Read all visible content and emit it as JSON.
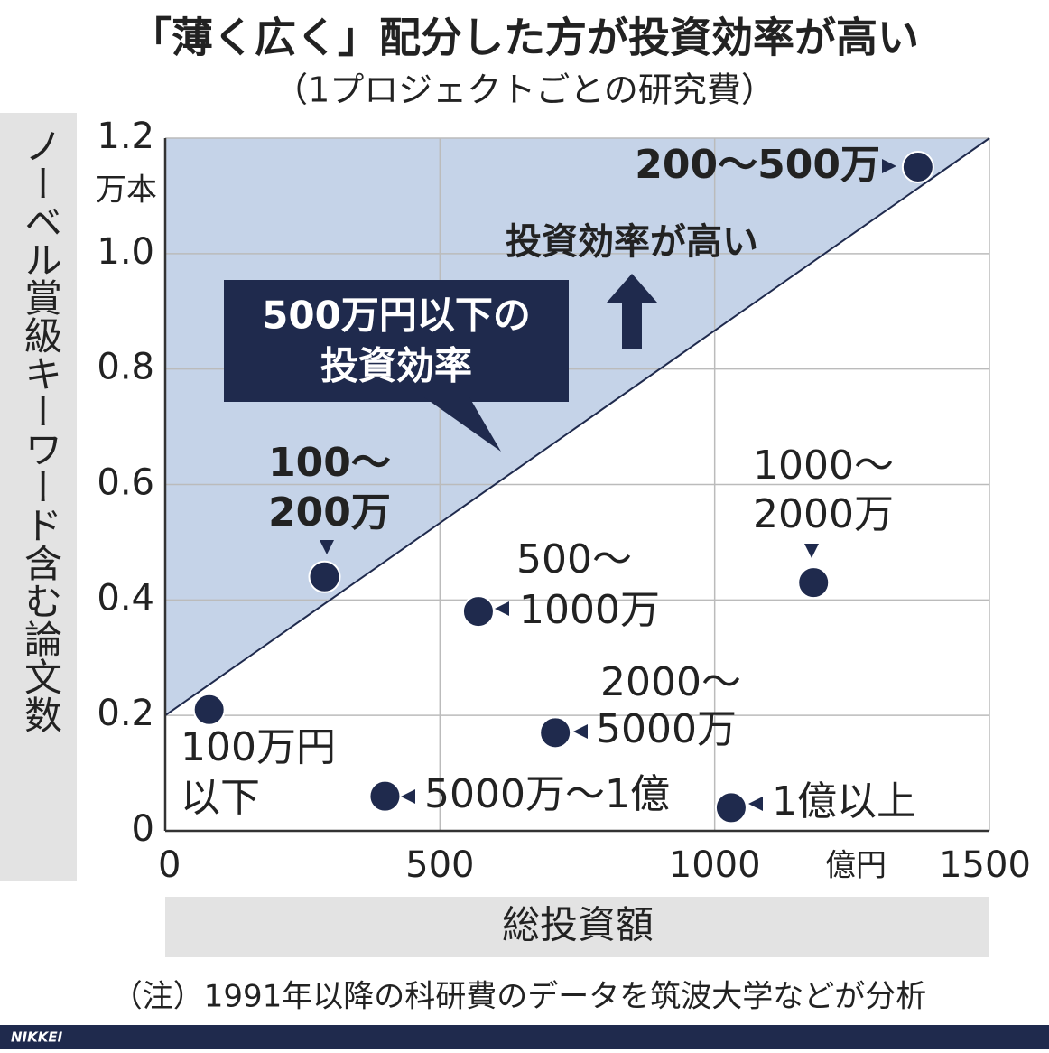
{
  "title": "「薄く広く」配分した方が投資効率が高い",
  "subtitle": "（1プロジェクトごとの研究費）",
  "note": "（注）1991年以降の科研費のデータを筑波大学などが分析",
  "footer": "NIKKEI",
  "chart_data": {
    "type": "scatter",
    "y_label": "ノーベル賞級キーワード含む論文数",
    "x_label": "総投資額",
    "y_unit": "万本",
    "x_unit": "億円",
    "x": [
      80,
      290,
      570,
      710,
      400,
      1030,
      1180,
      1370
    ],
    "values": [
      0.21,
      0.44,
      0.38,
      0.17,
      0.06,
      0.04,
      0.43,
      1.15
    ],
    "labels": [
      [
        "100万円",
        "以下"
      ],
      [
        "100～",
        "200万"
      ],
      [
        "500～",
        "1000万"
      ],
      [
        "2000～",
        "5000万"
      ],
      [
        "5000万～1億"
      ],
      [
        "1億以上"
      ],
      [
        "1000～",
        "2000万"
      ],
      [
        "200～500万"
      ]
    ],
    "color": "#1f2a4d",
    "xlim": [
      0,
      1500
    ],
    "ylim": [
      0,
      1.2
    ],
    "xticks": [
      0,
      500,
      1000,
      1500
    ],
    "yticks": [
      0,
      0.2,
      0.4,
      0.6,
      0.8,
      {
        "value": 1,
        "label": "1.0"
      },
      1.2
    ],
    "grid": true,
    "reference_line": {
      "x": [
        0,
        1500
      ],
      "y": [
        0.2,
        1.2
      ]
    },
    "region_color": "#c5d3e8",
    "callout": [
      "500万円以下の",
      "投資効率"
    ],
    "annotation": "投資効率が高い"
  }
}
